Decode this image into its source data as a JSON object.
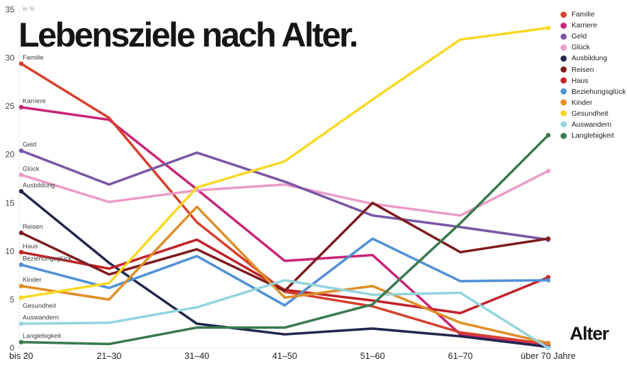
{
  "title": "Lebensziele nach Alter.",
  "y_axis": {
    "unit_label": "in %",
    "ticks": [
      0,
      5,
      10,
      15,
      20,
      25,
      30,
      35
    ],
    "min": 0,
    "max": 35
  },
  "x_axis": {
    "label": "Alter",
    "categories": [
      "bis 20",
      "21–30",
      "31–40",
      "41–50",
      "51–60",
      "61–70",
      "über 70 Jahre"
    ]
  },
  "chart_data": {
    "type": "line",
    "title": "Lebensziele nach Alter.",
    "xlabel": "Alter",
    "ylabel": "in %",
    "ylim": [
      0,
      35
    ],
    "grid": "dotted-axis-lines-only",
    "legend_position": "top-right",
    "categories": [
      "bis 20",
      "21–30",
      "31–40",
      "41–50",
      "51–60",
      "61–70",
      "über 70 Jahre"
    ],
    "series": [
      {
        "name": "Familie",
        "color": "#d6402e",
        "values": [
          29.4,
          23.8,
          13.0,
          5.8,
          4.3,
          1.6,
          0.4
        ]
      },
      {
        "name": "Karriere",
        "color": "#c92476",
        "values": [
          24.9,
          23.6,
          16.4,
          9.0,
          9.6,
          1.4,
          0.2
        ]
      },
      {
        "name": "Geld",
        "color": "#7b57a4",
        "values": [
          20.4,
          16.9,
          20.2,
          17.2,
          13.7,
          12.5,
          11.2
        ]
      },
      {
        "name": "Glück",
        "color": "#ec9cc8",
        "values": [
          17.9,
          15.1,
          16.3,
          16.9,
          14.9,
          13.7,
          18.3
        ]
      },
      {
        "name": "Ausbildung",
        "color": "#23274e",
        "values": [
          16.2,
          8.8,
          2.5,
          1.4,
          2.0,
          1.2,
          0.1
        ]
      },
      {
        "name": "Reisen",
        "color": "#7e1c1e",
        "values": [
          11.9,
          7.6,
          10.2,
          5.9,
          15.0,
          9.9,
          11.3
        ]
      },
      {
        "name": "Haus",
        "color": "#c02329",
        "values": [
          9.9,
          8.2,
          11.2,
          6.0,
          4.9,
          3.6,
          7.3
        ]
      },
      {
        "name": "Beziehungsglück",
        "color": "#5191d5",
        "values": [
          8.6,
          6.2,
          9.5,
          4.4,
          11.3,
          6.9,
          7.0
        ]
      },
      {
        "name": "Kinder",
        "color": "#e08e27",
        "values": [
          6.4,
          5.0,
          14.6,
          5.2,
          6.4,
          2.6,
          0.5
        ]
      },
      {
        "name": "Gesundheit",
        "color": "#f8d823",
        "values": [
          5.2,
          6.7,
          16.6,
          19.3,
          25.7,
          31.9,
          33.1
        ]
      },
      {
        "name": "Auswandern",
        "color": "#94d5dd",
        "values": [
          2.5,
          2.6,
          4.2,
          7.0,
          5.5,
          5.7,
          0.0
        ]
      },
      {
        "name": "Langlebigkeit",
        "color": "#3a7950",
        "values": [
          0.6,
          0.4,
          2.1,
          2.1,
          4.5,
          12.9,
          22.0
        ]
      }
    ]
  }
}
